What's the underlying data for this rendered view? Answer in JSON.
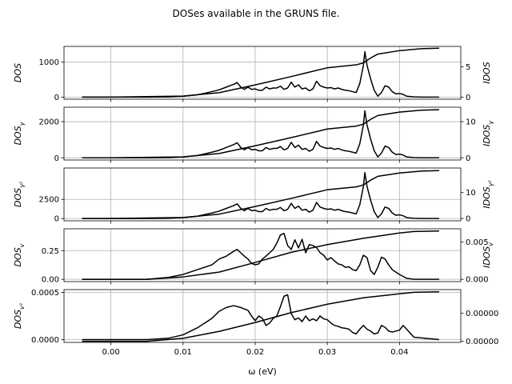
{
  "chart_data": {
    "type": "line",
    "title": "DOSes available in the GRUNS file.",
    "xlabel": "ω (eV)",
    "xlim": [
      -0.0065,
      0.0485
    ],
    "xticks": [
      0.0,
      0.01,
      0.02,
      0.03,
      0.04
    ],
    "xtick_labels": [
      "0.00",
      "0.01",
      "0.02",
      "0.03",
      "0.04"
    ],
    "grid": true,
    "line_color": "#000000",
    "panels": [
      {
        "ylabel_left": "DOS",
        "ylabel_right": "IDOS",
        "ylim_left": [
          -60,
          1450
        ],
        "yticks_left": [
          0,
          1000
        ],
        "ytick_labels_left": [
          "0",
          "1000"
        ],
        "ylim_right": [
          -0.35,
          8.4
        ],
        "yticks_right": [
          0,
          5
        ],
        "ytick_labels_right": [
          "0",
          "5"
        ],
        "dos_scale": 1300,
        "idos_max": 8.1
      },
      {
        "ylabel_left": "DOS_γ",
        "ylabel_right": "IDOS_γ",
        "ylim_left": [
          -120,
          2800
        ],
        "yticks_left": [
          0,
          2000
        ],
        "ytick_labels_left": [
          "0",
          "2000"
        ],
        "ylim_right": [
          -0.6,
          14.0
        ],
        "yticks_right": [
          0,
          10
        ],
        "ytick_labels_right": [
          "0",
          "10"
        ],
        "dos_scale": 2600,
        "idos_max": 13.3
      },
      {
        "ylabel_left": "DOS_γ²",
        "ylabel_right": "IDOS_γ²",
        "ylim_left": [
          -300,
          6600
        ],
        "yticks_left": [
          0,
          2500
        ],
        "ytick_labels_left": [
          "0",
          "2500"
        ],
        "ylim_right": [
          -0.9,
          19.5
        ],
        "yticks_right": [
          0,
          10
        ],
        "ytick_labels_right": [
          "0",
          "10"
        ],
        "dos_scale": 6000,
        "idos_max": 18.5
      },
      {
        "ylabel_left": "DOS_v",
        "ylabel_right": "IDOS_v",
        "ylim_left": [
          -0.02,
          0.44
        ],
        "yticks_left": [
          0.0,
          0.25
        ],
        "ytick_labels_left": [
          "0.00",
          "0.25"
        ],
        "ylim_right": [
          -0.0003,
          0.0068
        ],
        "yticks_right": [
          0.0,
          0.005
        ],
        "ytick_labels_right": [
          "0.000",
          "0.005"
        ],
        "dos_scale": 0.42,
        "idos_max": 0.0065
      },
      {
        "ylabel_left": "DOS_v²",
        "ylabel_right": "",
        "ylim_left": [
          -3e-05,
          0.00053
        ],
        "yticks_left": [
          0.0,
          0.0005
        ],
        "ytick_labels_left": [
          "0.0000",
          "0.0005"
        ],
        "ylim_right": [
          -2e-07,
          9.2e-06
        ],
        "yticks_right": [
          0.0,
          5e-06
        ],
        "ytick_labels_right": [
          "0.00000",
          "0.00000"
        ],
        "dos_scale": 0.0005,
        "idos_max": 8.8e-06
      }
    ],
    "series": [
      {
        "role": "dos",
        "profile_set": "A",
        "panels": [
          0,
          1,
          2
        ],
        "x": [
          -0.004,
          0.0,
          0.005,
          0.008,
          0.01,
          0.012,
          0.014,
          0.015,
          0.016,
          0.017,
          0.0175,
          0.018,
          0.0185,
          0.019,
          0.0195,
          0.02,
          0.0205,
          0.021,
          0.0215,
          0.022,
          0.0225,
          0.023,
          0.0235,
          0.024,
          0.0245,
          0.025,
          0.0255,
          0.026,
          0.0265,
          0.027,
          0.0275,
          0.028,
          0.0285,
          0.029,
          0.0295,
          0.03,
          0.0305,
          0.031,
          0.0315,
          0.032,
          0.0325,
          0.033,
          0.0335,
          0.034,
          0.0345,
          0.035,
          0.0352,
          0.0355,
          0.036,
          0.0365,
          0.037,
          0.0375,
          0.038,
          0.0385,
          0.039,
          0.0395,
          0.04,
          0.0405,
          0.041,
          0.042,
          0.043,
          0.0455
        ],
        "values": [
          0.0,
          0.0,
          0.0,
          0.005,
          0.02,
          0.05,
          0.12,
          0.16,
          0.22,
          0.28,
          0.32,
          0.22,
          0.17,
          0.22,
          0.17,
          0.18,
          0.15,
          0.15,
          0.22,
          0.18,
          0.2,
          0.2,
          0.24,
          0.17,
          0.2,
          0.33,
          0.22,
          0.27,
          0.18,
          0.2,
          0.14,
          0.18,
          0.35,
          0.25,
          0.22,
          0.2,
          0.21,
          0.18,
          0.2,
          0.17,
          0.15,
          0.14,
          0.12,
          0.1,
          0.3,
          0.7,
          1.0,
          0.7,
          0.4,
          0.15,
          0.02,
          0.1,
          0.25,
          0.22,
          0.12,
          0.07,
          0.08,
          0.06,
          0.02,
          0.005,
          0.0,
          0.0
        ]
      },
      {
        "role": "idos",
        "panels": [
          0,
          1,
          2
        ],
        "x": [
          -0.004,
          0.0,
          0.01,
          0.015,
          0.02,
          0.025,
          0.03,
          0.034,
          0.035,
          0.036,
          0.037,
          0.04,
          0.043,
          0.0455
        ],
        "values": [
          0.0,
          0.0,
          0.02,
          0.09,
          0.25,
          0.42,
          0.6,
          0.66,
          0.7,
          0.8,
          0.88,
          0.95,
          0.99,
          1.0
        ]
      },
      {
        "role": "dos",
        "profile_set": "B",
        "panels": [
          3
        ],
        "x": [
          -0.004,
          0.005,
          0.008,
          0.01,
          0.012,
          0.014,
          0.015,
          0.016,
          0.017,
          0.0175,
          0.018,
          0.0185,
          0.019,
          0.0195,
          0.02,
          0.0205,
          0.021,
          0.0215,
          0.022,
          0.0225,
          0.023,
          0.0235,
          0.024,
          0.0245,
          0.025,
          0.0255,
          0.026,
          0.0265,
          0.027,
          0.0275,
          0.028,
          0.0285,
          0.029,
          0.0295,
          0.03,
          0.0305,
          0.031,
          0.0315,
          0.032,
          0.0325,
          0.033,
          0.0335,
          0.034,
          0.0345,
          0.035,
          0.0355,
          0.036,
          0.0365,
          0.037,
          0.0375,
          0.038,
          0.0385,
          0.039,
          0.04,
          0.0405,
          0.041,
          0.042,
          0.0455
        ],
        "values": [
          0.0,
          0.0,
          0.04,
          0.1,
          0.2,
          0.3,
          0.42,
          0.48,
          0.58,
          0.62,
          0.55,
          0.48,
          0.42,
          0.33,
          0.3,
          0.32,
          0.42,
          0.48,
          0.55,
          0.62,
          0.75,
          0.92,
          0.95,
          0.7,
          0.62,
          0.82,
          0.65,
          0.83,
          0.55,
          0.72,
          0.7,
          0.66,
          0.55,
          0.5,
          0.4,
          0.45,
          0.38,
          0.32,
          0.3,
          0.25,
          0.26,
          0.2,
          0.18,
          0.3,
          0.5,
          0.45,
          0.18,
          0.1,
          0.25,
          0.46,
          0.42,
          0.3,
          0.2,
          0.1,
          0.06,
          0.02,
          0.0,
          0.0
        ]
      },
      {
        "role": "idos",
        "panels": [
          3
        ],
        "x": [
          -0.004,
          0.005,
          0.01,
          0.015,
          0.02,
          0.025,
          0.03,
          0.035,
          0.04,
          0.042,
          0.0455
        ],
        "values": [
          0.0,
          0.0,
          0.05,
          0.15,
          0.35,
          0.56,
          0.72,
          0.85,
          0.96,
          0.99,
          1.0
        ]
      },
      {
        "role": "dos",
        "profile_set": "C",
        "panels": [
          4
        ],
        "x": [
          -0.004,
          0.005,
          0.008,
          0.01,
          0.012,
          0.014,
          0.015,
          0.016,
          0.017,
          0.018,
          0.0185,
          0.019,
          0.0195,
          0.02,
          0.0205,
          0.021,
          0.0215,
          0.022,
          0.0225,
          0.023,
          0.0235,
          0.024,
          0.0245,
          0.025,
          0.0255,
          0.026,
          0.0265,
          0.027,
          0.0275,
          0.028,
          0.0285,
          0.029,
          0.0295,
          0.03,
          0.0305,
          0.031,
          0.0315,
          0.032,
          0.0325,
          0.033,
          0.0335,
          0.034,
          0.0345,
          0.035,
          0.0355,
          0.036,
          0.0365,
          0.037,
          0.0375,
          0.038,
          0.0385,
          0.039,
          0.04,
          0.0405,
          0.041,
          0.042,
          0.0455
        ],
        "values": [
          0.0,
          0.0,
          0.03,
          0.1,
          0.25,
          0.45,
          0.6,
          0.68,
          0.72,
          0.68,
          0.65,
          0.62,
          0.5,
          0.4,
          0.5,
          0.45,
          0.3,
          0.35,
          0.45,
          0.5,
          0.7,
          0.92,
          0.95,
          0.55,
          0.42,
          0.46,
          0.38,
          0.5,
          0.4,
          0.44,
          0.4,
          0.5,
          0.44,
          0.42,
          0.35,
          0.3,
          0.28,
          0.25,
          0.24,
          0.22,
          0.15,
          0.12,
          0.22,
          0.3,
          0.22,
          0.18,
          0.12,
          0.14,
          0.3,
          0.26,
          0.18,
          0.16,
          0.2,
          0.3,
          0.22,
          0.05,
          0.0
        ]
      },
      {
        "role": "idos",
        "panels": [
          4
        ],
        "x": [
          -0.004,
          0.005,
          0.01,
          0.015,
          0.02,
          0.025,
          0.03,
          0.035,
          0.04,
          0.042,
          0.0455
        ],
        "values": [
          0.0,
          0.0,
          0.06,
          0.2,
          0.38,
          0.58,
          0.75,
          0.88,
          0.96,
          0.99,
          1.0
        ]
      }
    ]
  }
}
